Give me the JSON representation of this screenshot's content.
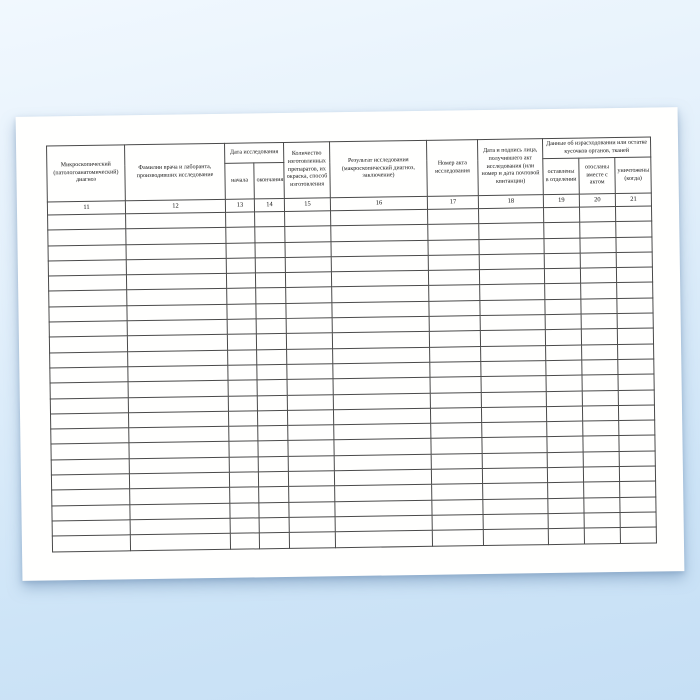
{
  "colors": {
    "background_top": "#f1f8fe",
    "background_bottom": "#c6dff5",
    "page": "#fffffe",
    "grid_line": "#4a4a4a"
  },
  "table": {
    "header": {
      "col11": "Микроскопический (патологоанатомический) диагноз",
      "col12": "Фамилии врача и лаборанта, производивших исследование",
      "date_group": "Дата исследования",
      "col13": "начала",
      "col14": "окончания",
      "col15": "Количество изготовленных препаратов, их окраска, способ изготовления",
      "col16": "Результат исследования (макроскопический диагноз, заключение)",
      "col17": "Номер акта исследования",
      "col18": "Дата и подпись лица, получившего акт исследования (или номер и дата почтовой квитанции)",
      "remains_group": "Данные об израсходовании или остатке кусочков органов, тканей",
      "col19": "оставлены в отделении",
      "col20": "отосланы вместе с актом",
      "col21": "уничтожены (когда)"
    },
    "column_numbers": [
      "11",
      "12",
      "13",
      "14",
      "15",
      "16",
      "17",
      "18",
      "19",
      "20",
      "21"
    ],
    "body": {
      "empty_row_count": 22,
      "columns_per_row": 11
    }
  }
}
